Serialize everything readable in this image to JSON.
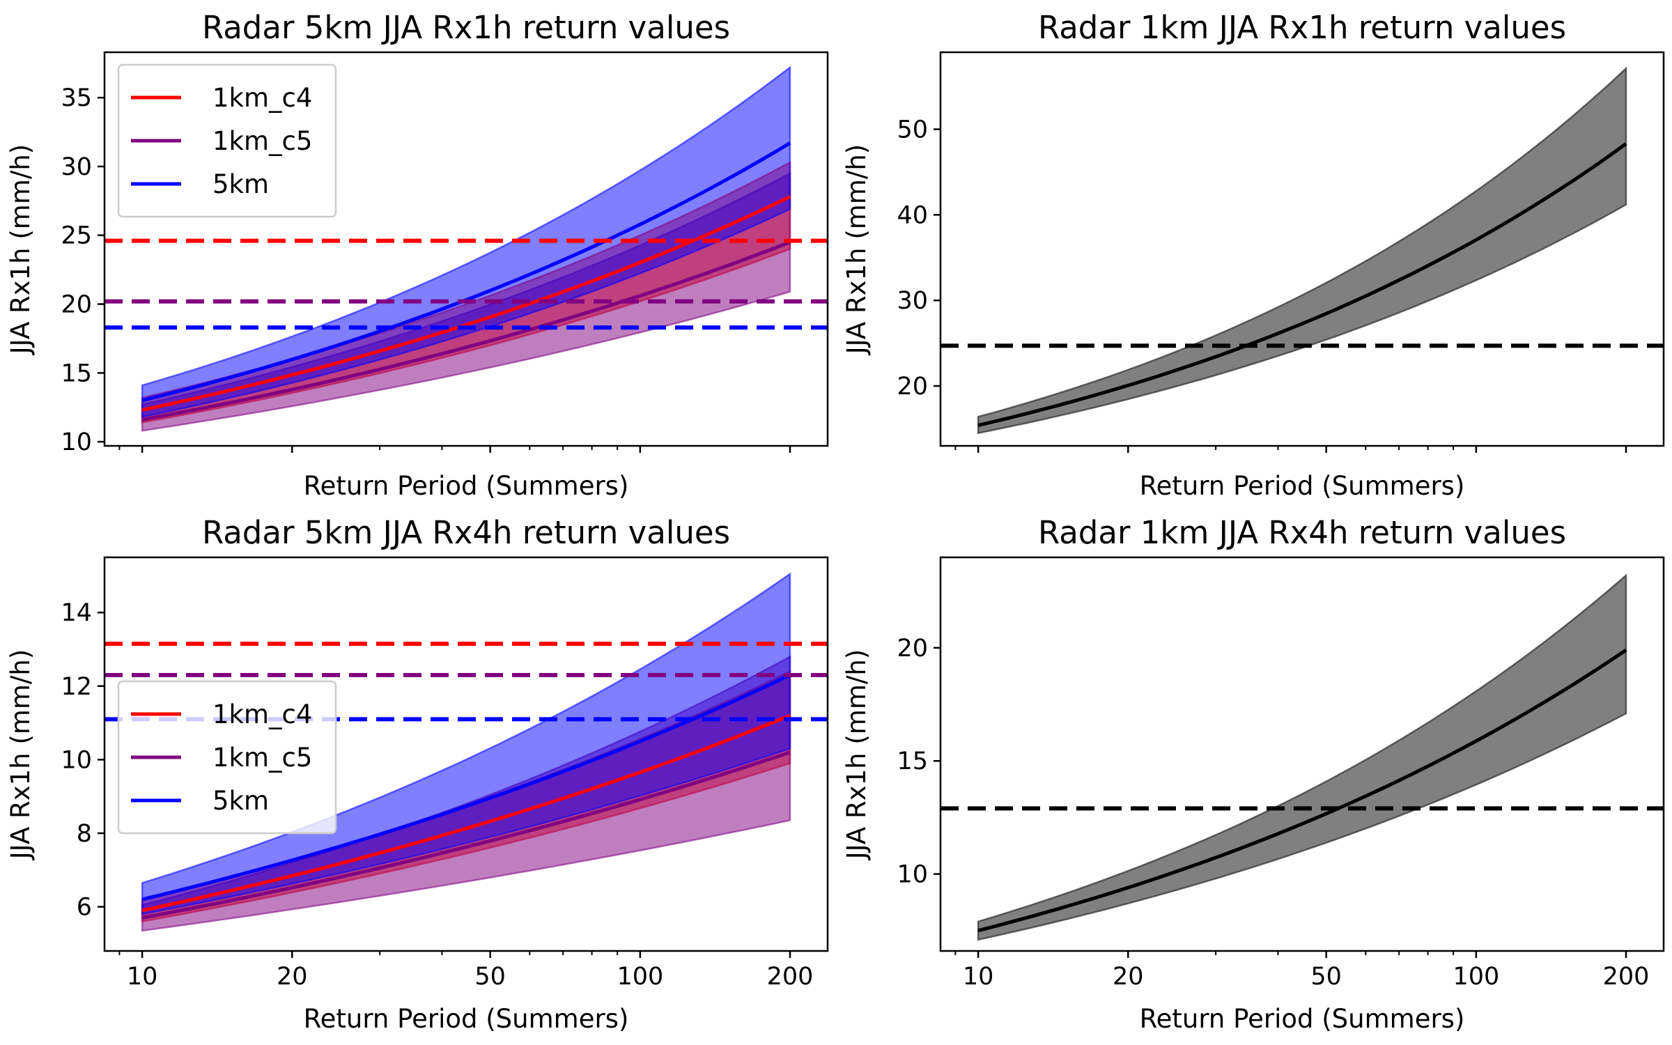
{
  "chart_data": [
    {
      "type": "line",
      "title": "Radar 5km JJA Rx1h return values",
      "xlabel": "Return Period (Summers)",
      "ylabel": "JJA Rx1h (mm/h)",
      "xscale": "log",
      "xlim": [
        8.4,
        238
      ],
      "ylim": [
        9.7,
        38.3
      ],
      "yticks": [
        10,
        15,
        20,
        25,
        30,
        35
      ],
      "xticks": [
        10,
        20,
        50,
        100,
        200
      ],
      "xtick_labels_visible": false,
      "legend": {
        "position": "upper left",
        "entries": [
          "1km_c4",
          "1km_c5",
          "5km"
        ]
      },
      "x": [
        10,
        200
      ],
      "series": [
        {
          "name": "1km_c4",
          "color": "#ff0000",
          "central": [
            12.3,
            27.8
          ],
          "lower": [
            11.4,
            24.0
          ],
          "upper": [
            13.2,
            30.3
          ],
          "threshold": 24.6
        },
        {
          "name": "1km_c5",
          "color": "#800080",
          "central": [
            11.6,
            24.5
          ],
          "lower": [
            10.8,
            20.9
          ],
          "upper": [
            12.7,
            29.5
          ],
          "threshold": 20.2
        },
        {
          "name": "5km",
          "color": "#0000ff",
          "central": [
            13.0,
            31.7
          ],
          "lower": [
            11.8,
            26.9
          ],
          "upper": [
            14.1,
            37.2
          ],
          "threshold": 18.3
        }
      ]
    },
    {
      "type": "line",
      "title": "Radar 1km JJA Rx1h return values",
      "xlabel": "Return Period (Summers)",
      "ylabel": "JJA Rx1h (mm/h)",
      "xscale": "log",
      "xlim": [
        8.4,
        238
      ],
      "ylim": [
        13.0,
        59.0
      ],
      "yticks": [
        20,
        30,
        40,
        50
      ],
      "xticks": [
        10,
        20,
        50,
        100,
        200
      ],
      "xtick_labels_visible": false,
      "x": [
        10,
        200
      ],
      "series": [
        {
          "color": "#000000",
          "central": [
            15.4,
            48.3
          ],
          "lower": [
            14.5,
            41.2
          ],
          "upper": [
            16.4,
            57.1
          ],
          "threshold": 24.7
        }
      ]
    },
    {
      "type": "line",
      "title": "Radar 5km JJA Rx4h return values",
      "xlabel": "Return Period (Summers)",
      "ylabel": "JJA Rx1h (mm/h)",
      "xscale": "log",
      "xlim": [
        8.4,
        238
      ],
      "ylim": [
        4.8,
        15.5
      ],
      "yticks": [
        6,
        8,
        10,
        12,
        14
      ],
      "xticks": [
        10,
        20,
        50,
        100,
        200
      ],
      "xtick_labels_visible": true,
      "legend": {
        "position": "center left",
        "entries": [
          "1km_c4",
          "1km_c5",
          "5km"
        ]
      },
      "x": [
        10,
        200
      ],
      "series": [
        {
          "name": "1km_c4",
          "color": "#ff0000",
          "central": [
            5.9,
            11.2
          ],
          "lower": [
            5.6,
            9.9
          ],
          "upper": [
            6.2,
            12.4
          ],
          "threshold": 13.15
        },
        {
          "name": "1km_c5",
          "color": "#800080",
          "central": [
            5.7,
            10.2
          ],
          "lower": [
            5.35,
            8.35
          ],
          "upper": [
            6.05,
            12.8
          ],
          "threshold": 12.3
        },
        {
          "name": "5km",
          "color": "#0000ff",
          "central": [
            6.2,
            12.3
          ],
          "lower": [
            5.8,
            10.3
          ],
          "upper": [
            6.65,
            15.05
          ],
          "threshold": 11.1
        }
      ]
    },
    {
      "type": "line",
      "title": "Radar 1km JJA Rx4h return values",
      "xlabel": "Return Period (Summers)",
      "ylabel": "JJA Rx1h (mm/h)",
      "xscale": "log",
      "xlim": [
        8.4,
        238
      ],
      "ylim": [
        6.6,
        24.0
      ],
      "yticks": [
        10,
        15,
        20
      ],
      "xticks": [
        10,
        20,
        50,
        100,
        200
      ],
      "xtick_labels_visible": true,
      "x": [
        10,
        200
      ],
      "series": [
        {
          "color": "#000000",
          "central": [
            7.5,
            19.9
          ],
          "lower": [
            7.1,
            17.1
          ],
          "upper": [
            7.9,
            23.2
          ],
          "threshold": 12.9
        }
      ]
    }
  ]
}
